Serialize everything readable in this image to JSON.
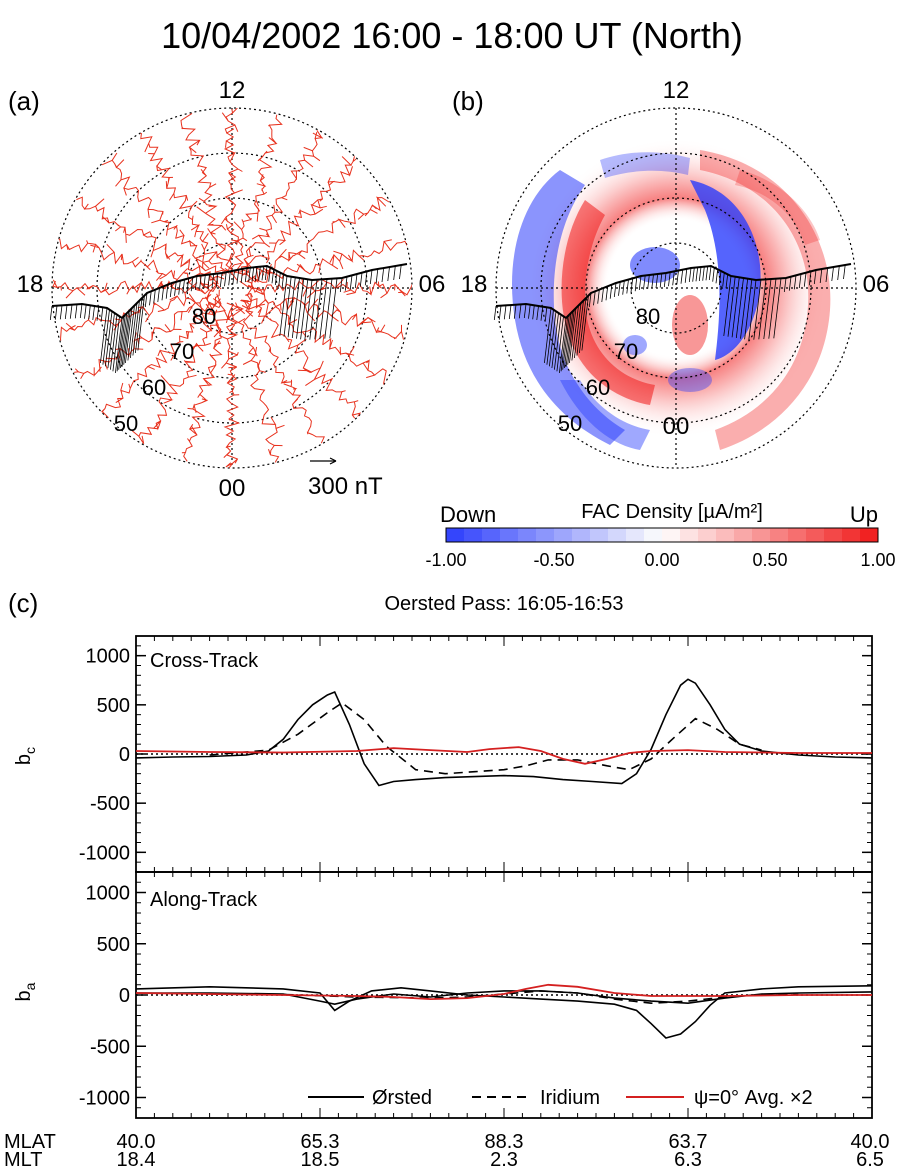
{
  "page": {
    "title": "10/04/2002  16:00 - 18:00 UT (North)"
  },
  "polar": {
    "panel_a_label": "(a)",
    "panel_b_label": "(b)",
    "mlt_top": "12",
    "mlt_left": "18",
    "mlt_right": "06",
    "mlt_bottom": "00",
    "lat_labels": [
      "80",
      "70",
      "60",
      "50"
    ],
    "scale_label": "300 nT",
    "colorbar": {
      "down_label": "Down",
      "title": "FAC Density [µA/m²]",
      "up_label": "Up",
      "ticks": [
        "-1.00",
        "-0.50",
        "0.00",
        "0.50",
        "1.00"
      ]
    }
  },
  "panel_c": {
    "label": "(c)",
    "title": "Oersted Pass: 16:05-16:53",
    "mlat_label": "MLAT",
    "mlt_label": "MLT",
    "mlat_values": [
      "40.0",
      "65.3",
      "88.3",
      "63.7",
      "40.0"
    ],
    "mlt_values": [
      "18.4",
      "18.5",
      "2.3",
      "6.3",
      "6.5"
    ],
    "legend": [
      "Ørsted",
      "Iridium",
      "ψ=0° Avg. ×2"
    ]
  },
  "chart_data": [
    {
      "type": "line",
      "panel": "cross-track",
      "annotation": "Cross-Track",
      "ylabel": "b_c",
      "ylim": [
        -1200,
        1200
      ],
      "yticks": [
        1000,
        500,
        0,
        -500,
        -1000
      ],
      "xlim": [
        0,
        1
      ],
      "reference_line": 0,
      "series": [
        {
          "name": "Ørsted",
          "color": "#000000",
          "dash": "solid",
          "x": [
            0,
            0.05,
            0.1,
            0.15,
            0.18,
            0.2,
            0.22,
            0.24,
            0.26,
            0.27,
            0.29,
            0.31,
            0.33,
            0.35,
            0.38,
            0.42,
            0.46,
            0.5,
            0.54,
            0.58,
            0.62,
            0.66,
            0.68,
            0.7,
            0.72,
            0.74,
            0.75,
            0.76,
            0.78,
            0.8,
            0.82,
            0.85,
            0.9,
            0.95,
            1
          ],
          "y": [
            -40,
            -30,
            -25,
            -10,
            30,
            150,
            350,
            500,
            600,
            630,
            300,
            -100,
            -320,
            -280,
            -260,
            -240,
            -230,
            -220,
            -230,
            -260,
            -280,
            -300,
            -200,
            50,
            400,
            700,
            760,
            720,
            500,
            250,
            100,
            30,
            -10,
            -30,
            -40
          ]
        },
        {
          "name": "Iridium",
          "color": "#000000",
          "dash": "dashed",
          "x": [
            0.1,
            0.18,
            0.22,
            0.26,
            0.28,
            0.31,
            0.34,
            0.38,
            0.42,
            0.46,
            0.5,
            0.53,
            0.56,
            0.6,
            0.64,
            0.67,
            0.7,
            0.73,
            0.76,
            0.79,
            0.82,
            0.85
          ],
          "y": [
            -10,
            40,
            200,
            420,
            520,
            350,
            80,
            -160,
            -200,
            -180,
            -160,
            -120,
            -60,
            -60,
            -120,
            -160,
            -50,
            160,
            360,
            250,
            100,
            40
          ]
        },
        {
          "name": "ψ=0° Avg. ×2",
          "color": "#d42020",
          "dash": "solid",
          "x": [
            0,
            0.1,
            0.2,
            0.3,
            0.35,
            0.4,
            0.45,
            0.48,
            0.52,
            0.55,
            0.58,
            0.61,
            0.64,
            0.67,
            0.7,
            0.75,
            0.8,
            0.9,
            1
          ],
          "y": [
            30,
            20,
            15,
            30,
            60,
            40,
            20,
            50,
            70,
            30,
            -50,
            -100,
            -50,
            10,
            30,
            40,
            20,
            10,
            10
          ]
        }
      ]
    },
    {
      "type": "line",
      "panel": "along-track",
      "annotation": "Along-Track",
      "ylabel": "b_a",
      "ylim": [
        -1200,
        1200
      ],
      "yticks": [
        1000,
        500,
        0,
        -500,
        -1000
      ],
      "xlim": [
        0,
        1
      ],
      "reference_line": 0,
      "series": [
        {
          "name": "Ørsted",
          "color": "#000000",
          "dash": "solid",
          "x": [
            0,
            0.1,
            0.2,
            0.25,
            0.27,
            0.29,
            0.32,
            0.36,
            0.4,
            0.45,
            0.5,
            0.55,
            0.6,
            0.65,
            0.68,
            0.7,
            0.72,
            0.74,
            0.76,
            0.78,
            0.8,
            0.85,
            0.9,
            1
          ],
          "y": [
            60,
            80,
            60,
            20,
            -150,
            -60,
            40,
            70,
            40,
            0,
            -20,
            -40,
            -60,
            -90,
            -150,
            -280,
            -420,
            -380,
            -260,
            -100,
            20,
            60,
            80,
            90
          ]
        },
        {
          "name": "Ørsted",
          "color": "#000000",
          "dash": "solid",
          "x": [
            0,
            0.1,
            0.2,
            0.25,
            0.27,
            0.3,
            0.35,
            0.4,
            0.45,
            0.5,
            0.55,
            0.6,
            0.65,
            0.7,
            0.75,
            0.8,
            0.85,
            0.9,
            1
          ],
          "y": [
            20,
            20,
            10,
            -60,
            -90,
            -40,
            10,
            -20,
            20,
            40,
            40,
            20,
            -30,
            -60,
            -80,
            -30,
            10,
            20,
            30
          ]
        },
        {
          "name": "Iridium",
          "color": "#000000",
          "dash": "dashed",
          "x": [
            0.1,
            0.2,
            0.3,
            0.4,
            0.45,
            0.5,
            0.55,
            0.6,
            0.65,
            0.7,
            0.75,
            0.8,
            0.85,
            0.9
          ],
          "y": [
            10,
            5,
            -20,
            -30,
            -20,
            10,
            40,
            20,
            -40,
            -80,
            -60,
            -20,
            0,
            5
          ]
        },
        {
          "name": "ψ=0° Avg. ×2",
          "color": "#d42020",
          "dash": "solid",
          "x": [
            0,
            0.1,
            0.2,
            0.3,
            0.35,
            0.4,
            0.45,
            0.5,
            0.53,
            0.56,
            0.6,
            0.65,
            0.7,
            0.8,
            0.9,
            1
          ],
          "y": [
            20,
            10,
            0,
            -10,
            -20,
            -40,
            -30,
            10,
            60,
            100,
            80,
            20,
            -10,
            -10,
            0,
            0
          ]
        }
      ]
    }
  ],
  "colors": {
    "vector_red": "#e8321e",
    "fac_down": "#2b3dfc",
    "fac_up": "#f01818"
  }
}
